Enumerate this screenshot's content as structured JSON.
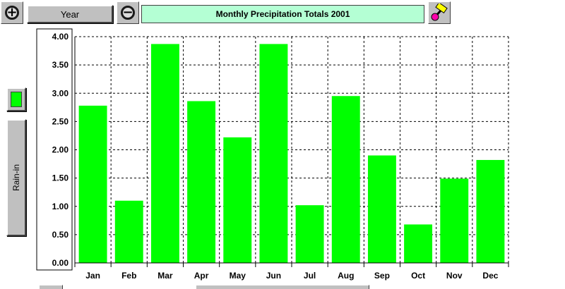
{
  "toolbar": {
    "zoom_in_icon": "plus-circle",
    "zoom_out_icon": "minus-circle",
    "period_label": "Year",
    "title": "Monthly Precipitation Totals 2001",
    "tool_icon": "paint-brush"
  },
  "legend": {
    "series_label": "Rain-in",
    "series_color": "#00ff00"
  },
  "chart_data": {
    "type": "bar",
    "title": "Monthly Precipitation Totals 2001",
    "ylabel": "Rain-in",
    "xlabel": "",
    "categories": [
      "Jan",
      "Feb",
      "Mar",
      "Apr",
      "May",
      "Jun",
      "Jul",
      "Aug",
      "Sep",
      "Oct",
      "Nov",
      "Dec"
    ],
    "values": [
      2.78,
      1.1,
      3.87,
      2.86,
      2.22,
      3.87,
      1.02,
      2.95,
      1.9,
      0.68,
      1.49,
      1.82
    ],
    "ylim": [
      0,
      4
    ],
    "yticks": [
      "0.00",
      "0.50",
      "1.00",
      "1.50",
      "2.00",
      "2.50",
      "3.00",
      "3.50",
      "4.00"
    ],
    "grid": true,
    "bar_color": "#00ff00"
  }
}
